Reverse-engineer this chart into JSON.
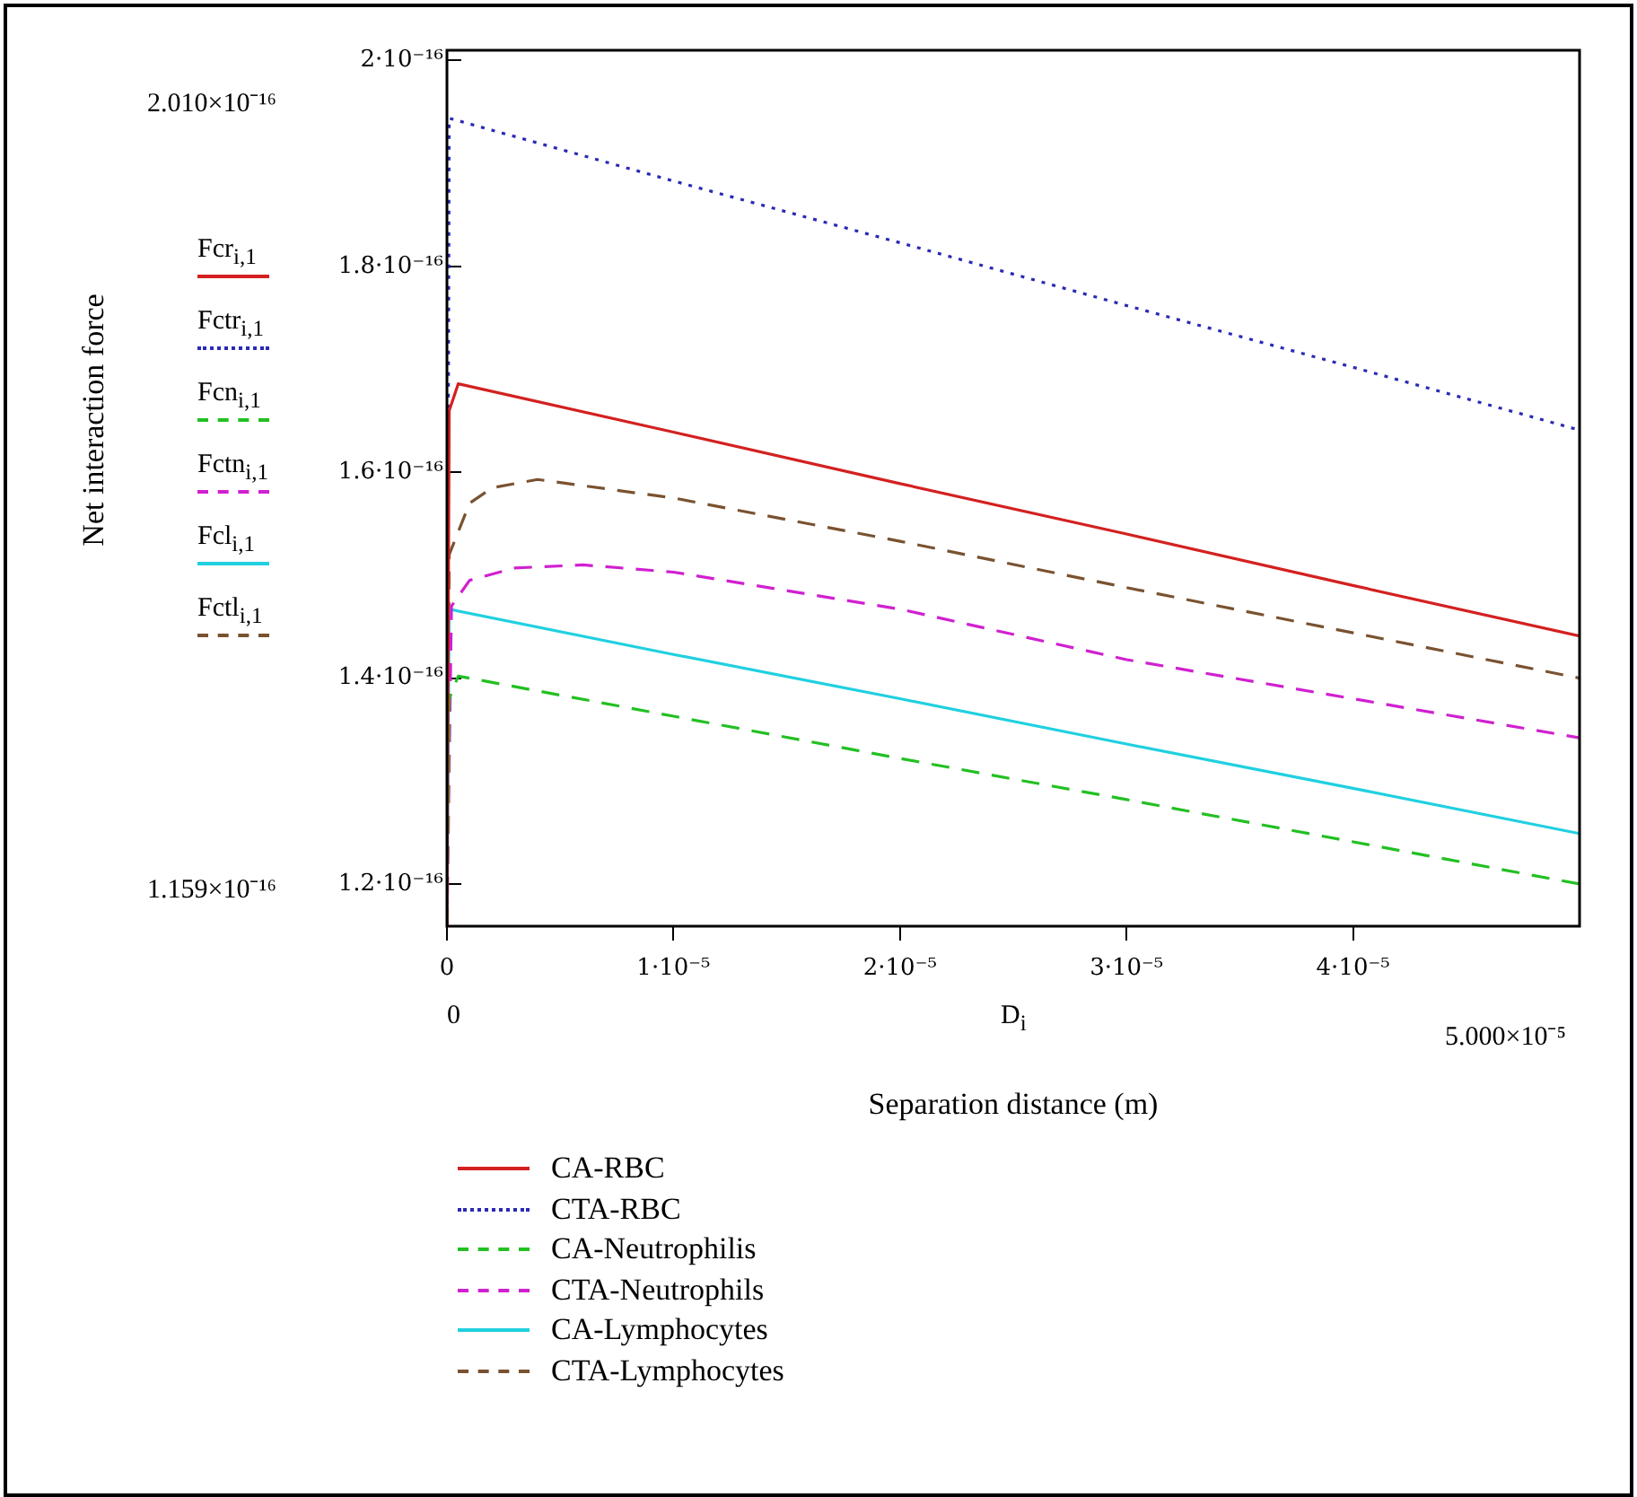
{
  "chart_data": {
    "type": "line",
    "xlabel": "Separation distance (m)",
    "xlim": [
      0,
      5e-05
    ],
    "ylim": [
      1.159e-16,
      2.01e-16
    ],
    "xticks": [
      0,
      {
        "value": 1e-05,
        "label": "1·10⁻⁵"
      },
      {
        "value": 2e-05,
        "label": "2·10⁻⁵"
      },
      {
        "value": 3e-05,
        "label": "3·10⁻⁵"
      },
      {
        "value": 4e-05,
        "label": "4·10⁻⁵"
      }
    ],
    "yticks": [
      {
        "value": 1.2e-16,
        "label": "1.2·10⁻¹⁶"
      },
      {
        "value": 1.4e-16,
        "label": "1.4·10⁻¹⁶"
      },
      {
        "value": 1.6e-16,
        "label": "1.6·10⁻¹⁶"
      },
      {
        "value": 1.8e-16,
        "label": "1.8·10⁻¹⁶"
      },
      {
        "value": 2e-16,
        "label": "2·10⁻¹⁶"
      }
    ],
    "legend": "bottom",
    "grid": false,
    "annotations": [
      "2.010×10⁻¹⁶",
      "1.159×10⁻¹⁶",
      "0",
      "D$_{i}$",
      "5.000×10⁻⁵",
      "Net interaction force",
      "Fcr$_{i,1}$",
      "Fctr$_{i,1}$",
      "Fcn$_{i,1}$",
      "Fctn$_{i,1}$",
      "Fcl$_{i,1}$",
      "Fctl$_{i,1}$"
    ],
    "series": [
      {
        "name": "CA-RBC",
        "color": "#d42020",
        "line_style": "solid",
        "x": [
          0,
          1e-07,
          5e-07,
          1e-05,
          2e-05,
          3e-05,
          4e-05,
          5e-05
        ],
        "values": [
          1.16e-16,
          1.66e-16,
          1.686e-16,
          1.639e-16,
          1.589e-16,
          1.54e-16,
          1.49e-16,
          1.441e-16
        ]
      },
      {
        "name": "CTA-RBC",
        "color": "#2a2ab4",
        "line_style": "dotted",
        "x": [
          0,
          1e-07,
          1e-05,
          2e-05,
          3e-05,
          4e-05,
          5e-05
        ],
        "values": [
          1.16e-16,
          1.944e-16,
          1.883e-16,
          1.823e-16,
          1.762e-16,
          1.702e-16,
          1.641e-16
        ]
      },
      {
        "name": "CA-Neutrophilis",
        "color": "#22c022",
        "line_style": "dashed",
        "x": [
          0,
          1e-07,
          5e-07,
          1e-05,
          2e-05,
          3e-05,
          4e-05,
          5e-05
        ],
        "values": [
          1.16e-16,
          1.38e-16,
          1.402e-16,
          1.363e-16,
          1.322e-16,
          1.282e-16,
          1.241e-16,
          1.2e-16
        ]
      },
      {
        "name": "CTA-Neutrophils",
        "color": "#d020d0",
        "line_style": "dashed",
        "x": [
          0,
          2e-07,
          1e-06,
          3e-06,
          6e-06,
          1e-05,
          2e-05,
          3e-05,
          4e-05,
          5e-05
        ],
        "values": [
          1.16e-16,
          1.47e-16,
          1.495e-16,
          1.507e-16,
          1.51e-16,
          1.503e-16,
          1.467e-16,
          1.418e-16,
          1.38e-16,
          1.342e-16
        ]
      },
      {
        "name": "CA-Lymphocytes",
        "color": "#20d0e0",
        "line_style": "solid",
        "x": [
          0,
          1e-07,
          1e-05,
          2e-05,
          3e-05,
          4e-05,
          5e-05
        ],
        "values": [
          1.16e-16,
          1.467e-16,
          1.423e-16,
          1.38e-16,
          1.336e-16,
          1.293e-16,
          1.249e-16
        ]
      },
      {
        "name": "CTA-Lymphocytes",
        "color": "#7a5230",
        "line_style": "dashed",
        "x": [
          0,
          1e-07,
          1e-06,
          2e-06,
          4e-06,
          1e-05,
          2e-05,
          3e-05,
          4e-05,
          5e-05
        ],
        "values": [
          1.16e-16,
          1.52e-16,
          1.57e-16,
          1.585e-16,
          1.593e-16,
          1.575e-16,
          1.533e-16,
          1.488e-16,
          1.444e-16,
          1.4e-16
        ]
      }
    ]
  }
}
